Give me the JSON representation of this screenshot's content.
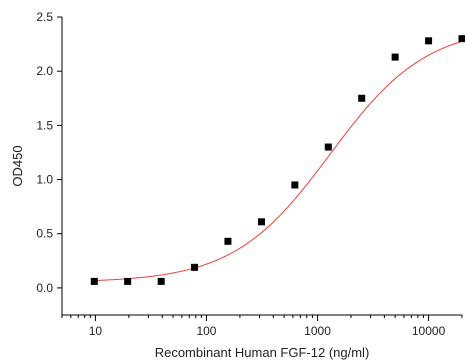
{
  "chart_data": {
    "type": "scatter",
    "xlabel": "Recombinant Human FGF-12 (ng/ml)",
    "ylabel": "OD450",
    "x_scale": "log",
    "xlim": [
      5,
      20000
    ],
    "ylim": [
      -0.25,
      2.5
    ],
    "x_ticks": [
      10,
      100,
      1000,
      10000
    ],
    "x_tick_labels": [
      "10",
      "100",
      "1000",
      "10000"
    ],
    "y_ticks": [
      0.0,
      0.5,
      1.0,
      1.5,
      2.0,
      2.5
    ],
    "y_tick_labels": [
      "0.0",
      "0.5",
      "1.0",
      "1.5",
      "2.0",
      "2.5"
    ],
    "grid": false,
    "series": [
      {
        "marker": "square",
        "color": "#000000",
        "x": [
          9.77,
          19.5,
          39.1,
          78.1,
          156,
          313,
          625,
          1250,
          2500,
          5000,
          10000,
          20000
        ],
        "y": [
          0.06,
          0.06,
          0.06,
          0.19,
          0.43,
          0.61,
          0.95,
          1.3,
          1.75,
          2.13,
          2.28,
          2.3
        ]
      }
    ],
    "fit": {
      "type": "4PL",
      "color": "#e8423a",
      "bottom": 0.05,
      "top": 2.42,
      "ec50": 1300,
      "hill": 1.0
    }
  }
}
